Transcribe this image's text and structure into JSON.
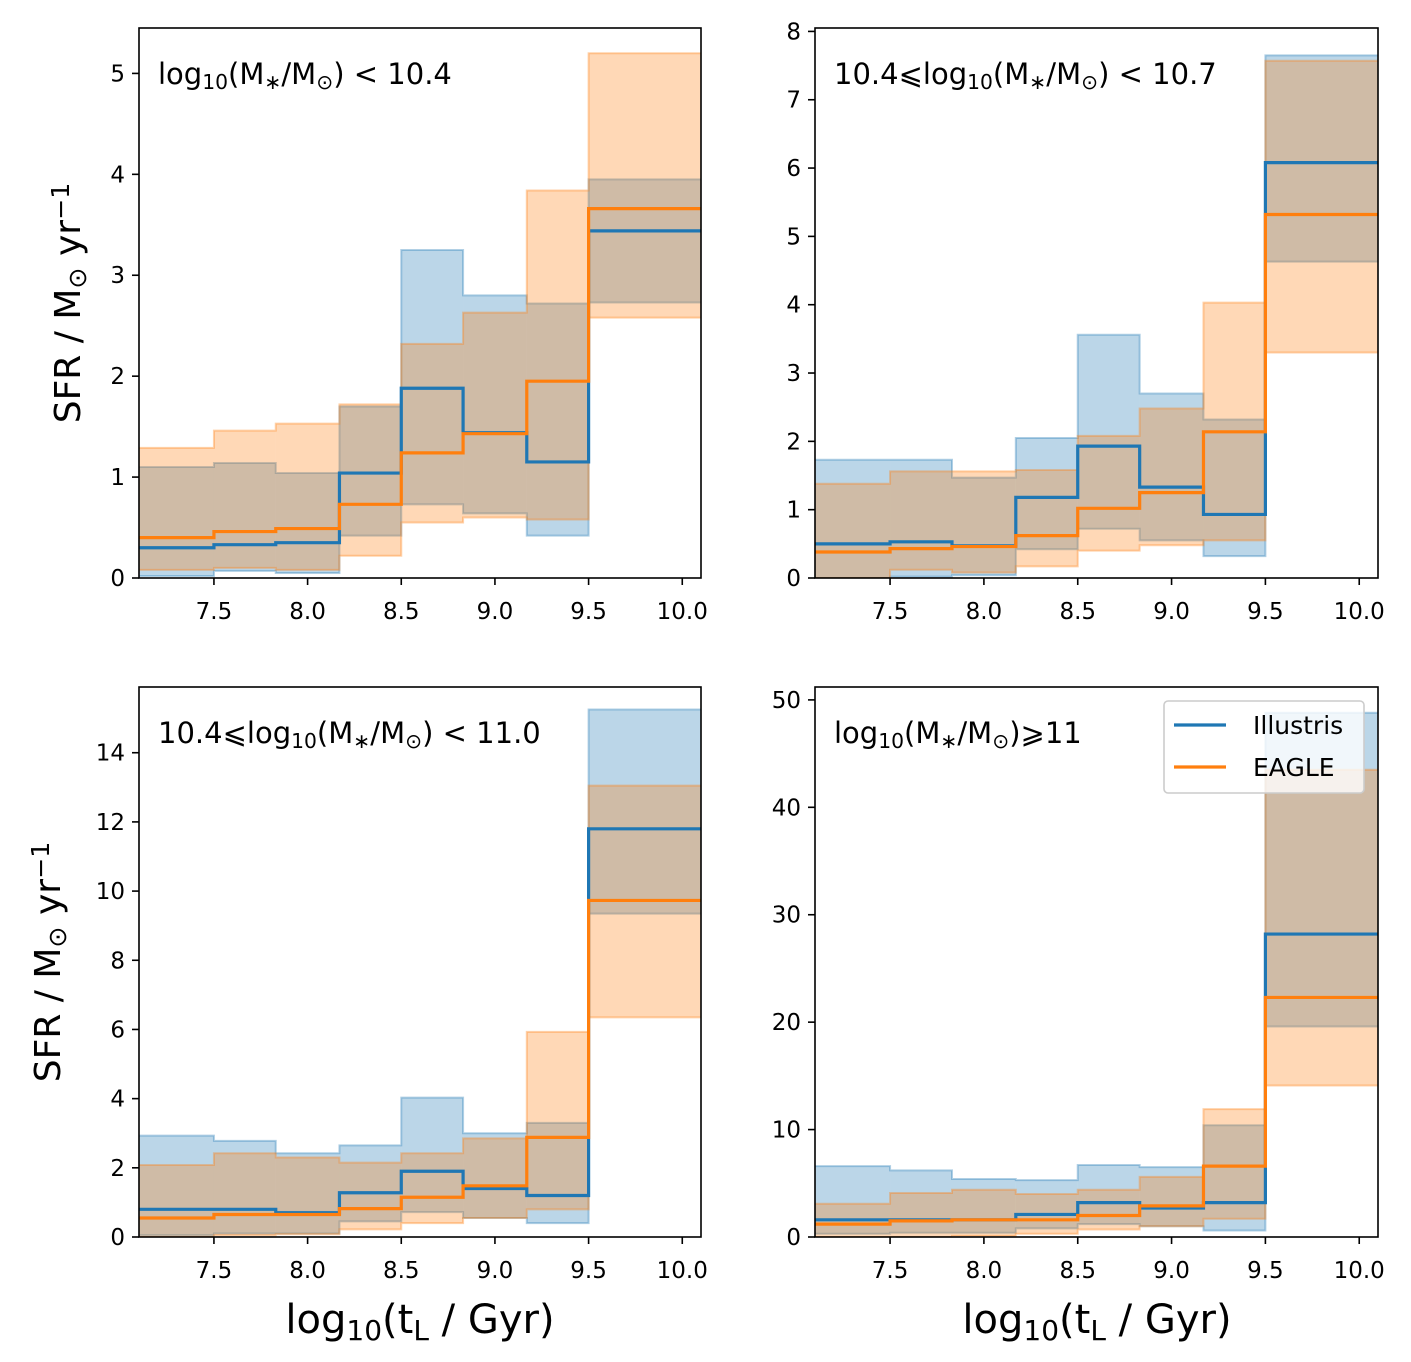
{
  "chart_data": [
    {
      "type": "step-area",
      "panel": "top-left",
      "annotation": "log10(M*/M⊙) < 10.4",
      "xlabel": "",
      "ylabel": "SFR / M⊙ yr−1",
      "xlim": [
        7.1,
        10.1
      ],
      "ylim": [
        0,
        5.45
      ],
      "xticks": [
        "7.5",
        "8.0",
        "8.5",
        "9.0",
        "9.5",
        "10.0"
      ],
      "yticks": [
        "0",
        "1",
        "2",
        "3",
        "4",
        "5"
      ],
      "bin_edges": [
        7.1,
        7.5,
        7.83,
        8.17,
        8.5,
        8.83,
        9.17,
        9.5,
        10.1
      ],
      "series": [
        {
          "name": "Illustris",
          "color": "#1f77b4",
          "values": [
            0.3,
            0.33,
            0.35,
            1.04,
            1.88,
            1.44,
            1.15,
            3.44
          ],
          "low": [
            0.02,
            0.07,
            0.05,
            0.42,
            0.73,
            0.64,
            0.42,
            2.73
          ],
          "high": [
            1.1,
            1.14,
            1.04,
            1.7,
            3.25,
            2.8,
            2.72,
            3.95
          ]
        },
        {
          "name": "EAGLE",
          "color": "#ff7f0e",
          "values": [
            0.4,
            0.46,
            0.49,
            0.73,
            1.24,
            1.43,
            1.95,
            3.66
          ],
          "low": [
            0.08,
            0.1,
            0.08,
            0.22,
            0.55,
            0.6,
            0.58,
            2.58
          ],
          "high": [
            1.29,
            1.46,
            1.53,
            1.72,
            2.32,
            2.63,
            3.84,
            5.2
          ]
        }
      ]
    },
    {
      "type": "step-area",
      "panel": "top-right",
      "annotation": "10.4⩽log10(M*/M⊙) < 10.7",
      "xlabel": "",
      "ylabel": "",
      "xlim": [
        7.1,
        10.1
      ],
      "ylim": [
        0,
        8.05
      ],
      "xticks": [
        "7.5",
        "8.0",
        "8.5",
        "9.0",
        "9.5",
        "10.0"
      ],
      "yticks": [
        "0",
        "1",
        "2",
        "3",
        "4",
        "5",
        "6",
        "7",
        "8"
      ],
      "bin_edges": [
        7.1,
        7.5,
        7.83,
        8.17,
        8.5,
        8.83,
        9.17,
        9.5,
        10.1
      ],
      "series": [
        {
          "name": "Illustris",
          "color": "#1f77b4",
          "values": [
            0.5,
            0.53,
            0.47,
            1.18,
            1.93,
            1.33,
            0.93,
            6.08
          ],
          "low": [
            0.0,
            0.02,
            0.04,
            0.42,
            0.72,
            0.55,
            0.32,
            4.63
          ],
          "high": [
            1.73,
            1.73,
            1.47,
            2.05,
            3.56,
            2.7,
            2.32,
            7.65
          ]
        },
        {
          "name": "EAGLE",
          "color": "#ff7f0e",
          "values": [
            0.38,
            0.43,
            0.46,
            0.62,
            1.02,
            1.25,
            2.14,
            5.32
          ],
          "low": [
            0.0,
            0.12,
            0.08,
            0.17,
            0.4,
            0.48,
            0.55,
            3.3
          ],
          "high": [
            1.38,
            1.56,
            1.56,
            1.58,
            2.08,
            2.48,
            4.03,
            7.57
          ]
        }
      ]
    },
    {
      "type": "step-area",
      "panel": "bottom-left",
      "annotation": "10.4⩽log10(M*/M⊙) < 11.0",
      "xlabel": "log10(tL / Gyr)",
      "ylabel": "SFR / M⊙ yr−1",
      "xlim": [
        7.1,
        10.1
      ],
      "ylim": [
        0,
        15.9
      ],
      "xticks": [
        "7.5",
        "8.0",
        "8.5",
        "9.0",
        "9.5",
        "10.0"
      ],
      "yticks": [
        "0",
        "2",
        "4",
        "6",
        "8",
        "10",
        "12",
        "14"
      ],
      "bin_edges": [
        7.1,
        7.5,
        7.83,
        8.17,
        8.5,
        8.83,
        9.17,
        9.5,
        10.1
      ],
      "series": [
        {
          "name": "Illustris",
          "color": "#1f77b4",
          "values": [
            0.8,
            0.8,
            0.7,
            1.28,
            1.9,
            1.4,
            1.2,
            11.8
          ],
          "low": [
            0.05,
            0.1,
            0.1,
            0.45,
            0.72,
            0.55,
            0.4,
            9.35
          ],
          "high": [
            2.93,
            2.78,
            2.42,
            2.65,
            4.03,
            3.0,
            3.3,
            15.25
          ]
        },
        {
          "name": "EAGLE",
          "color": "#ff7f0e",
          "values": [
            0.55,
            0.65,
            0.65,
            0.82,
            1.15,
            1.48,
            2.88,
            9.73
          ],
          "low": [
            0.0,
            0.05,
            0.08,
            0.22,
            0.4,
            0.55,
            0.8,
            6.35
          ],
          "high": [
            2.08,
            2.42,
            2.3,
            2.15,
            2.42,
            2.85,
            5.93,
            13.05
          ]
        }
      ]
    },
    {
      "type": "step-area",
      "panel": "bottom-right",
      "annotation": "log10(M*/M⊙)⩾11",
      "xlabel": "log10(tL / Gyr)",
      "ylabel": "",
      "xlim": [
        7.1,
        10.1
      ],
      "ylim": [
        0,
        51.2
      ],
      "xticks": [
        "7.5",
        "8.0",
        "8.5",
        "9.0",
        "9.5",
        "10.0"
      ],
      "yticks": [
        "0",
        "10",
        "20",
        "30",
        "40",
        "50"
      ],
      "bin_edges": [
        7.1,
        7.5,
        7.83,
        8.17,
        8.5,
        8.83,
        9.17,
        9.5,
        10.1
      ],
      "legend": {
        "placement": "top-right",
        "entries": [
          "Illustris",
          "EAGLE"
        ]
      },
      "series": [
        {
          "name": "Illustris",
          "color": "#1f77b4",
          "values": [
            1.6,
            1.6,
            1.6,
            2.1,
            3.2,
            2.7,
            3.2,
            28.2
          ],
          "low": [
            0.3,
            0.4,
            0.4,
            0.8,
            1.2,
            1.0,
            0.6,
            19.6
          ],
          "high": [
            6.6,
            6.2,
            5.4,
            5.3,
            6.7,
            6.5,
            10.4,
            48.8
          ]
        },
        {
          "name": "EAGLE",
          "color": "#ff7f0e",
          "values": [
            1.2,
            1.5,
            1.6,
            1.6,
            2.0,
            2.9,
            6.6,
            22.3
          ],
          "low": [
            0.0,
            0.0,
            0.1,
            0.3,
            0.7,
            1.0,
            1.7,
            14.1
          ],
          "high": [
            3.1,
            4.1,
            4.4,
            4.0,
            4.4,
            5.6,
            11.9,
            43.5
          ]
        }
      ]
    }
  ]
}
